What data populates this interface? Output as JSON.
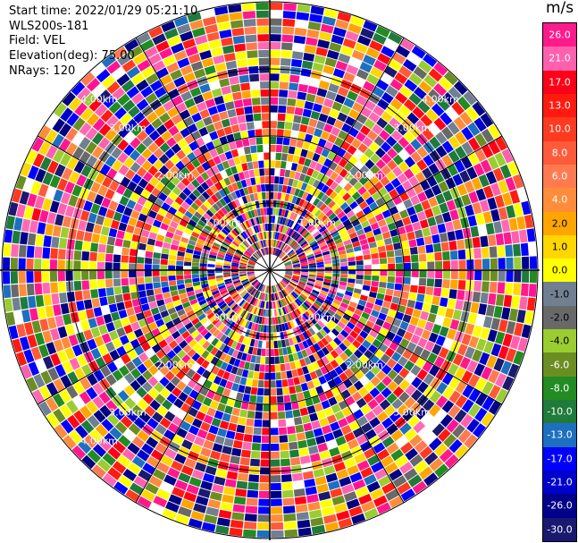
{
  "info": {
    "start_time": "Start time: 2022/01/29 05:21:10",
    "instrument": "WLS200s-181",
    "field": "Field: VEL",
    "elevation": "Elevation(deg): 75.00",
    "nrays": "NRays: 120"
  },
  "range_labels": [
    "1.00km",
    "2.00km",
    "3.00km",
    "4.00km"
  ],
  "colorbar": {
    "unit": "m/s",
    "labels": [
      "26.0",
      "21.0",
      "17.0",
      "13.0",
      "10.0",
      "8.0",
      "6.0",
      "4.0",
      "2.0",
      "1.0",
      "0.0",
      "-1.0",
      "-2.0",
      "-4.0",
      "-6.0",
      "-8.0",
      "-10.0",
      "-13.0",
      "-17.0",
      "-21.0",
      "-26.0",
      "-30.0"
    ],
    "colors": [
      "#ff1a8c",
      "#ff60ae",
      "#ff0018",
      "#ff1a10",
      "#ff3a20",
      "#ff5a3a",
      "#ff7a50",
      "#ff8c3a",
      "#ffa500",
      "#ffd700",
      "#ffff00",
      "#708090",
      "#696969",
      "#9acd32",
      "#6b8e23",
      "#228b22",
      "#1e7b3a",
      "#1e6fbf",
      "#0000ff",
      "#0000cd",
      "#00008b",
      "#191970"
    ]
  }
}
